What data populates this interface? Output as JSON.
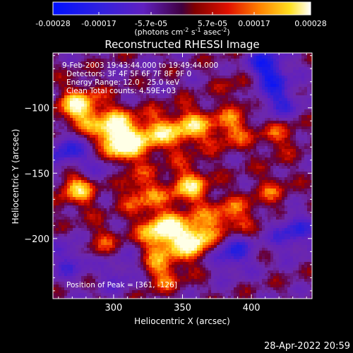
{
  "colorbar": {
    "ticks": [
      "-0.00028",
      "-0.00017",
      "-5.7e-05",
      "5.7e-05",
      "0.00017",
      "0.00028"
    ],
    "unit_main": "(photons cm",
    "unit_exp1": "-2",
    "unit_mid": " s",
    "unit_exp2": "-1",
    "unit_end": " asec",
    "unit_exp3": "-2",
    "unit_close": ")",
    "min": -0.00028,
    "max": 0.00028,
    "colormap": "rainbow-to-hot (blue, purple, red, orange, yellow, white)"
  },
  "annotations": {
    "time_range": "9-Feb-2003 19:43:44.000 to 19:49:44.000",
    "detectors": "Detectors: 3F 4F 5F 6F 7F 8F 9F 0",
    "energy": "Energy Range: 12.0 - 25.0 keV",
    "clean": "Clean     Total counts: 4.59E+03",
    "peak": "Position of Peak = [361, -126]"
  },
  "footer": {
    "timestamp": "28-Apr-2022 20:59"
  },
  "chart_data": {
    "type": "heatmap",
    "title": "Reconstructed RHESSI Image",
    "xlabel": "Heliocentric X (arcsec)",
    "ylabel": "Heliocentric Y (arcsec)",
    "xlim": [
      256,
      444
    ],
    "ylim": [
      -246,
      -58
    ],
    "xticks": [
      300,
      350,
      400
    ],
    "yticks": [
      -100,
      -150,
      -200
    ],
    "xtick_labels": [
      "300",
      "350",
      "400"
    ],
    "ytick_labels": [
      "−100",
      "−150",
      "−200"
    ],
    "value_range": [
      -0.00028,
      0.00028
    ],
    "bright_regions": [
      {
        "x": 275,
        "y": -100,
        "level": 0.85
      },
      {
        "x": 300,
        "y": -115,
        "level": 0.7
      },
      {
        "x": 305,
        "y": -130,
        "level": 0.9
      },
      {
        "x": 275,
        "y": -160,
        "level": 0.75
      },
      {
        "x": 330,
        "y": -120,
        "level": 0.65
      },
      {
        "x": 355,
        "y": -115,
        "level": 0.7
      },
      {
        "x": 385,
        "y": -115,
        "level": 0.55
      },
      {
        "x": 355,
        "y": -160,
        "level": 0.7
      },
      {
        "x": 320,
        "y": -165,
        "level": 0.55
      },
      {
        "x": 335,
        "y": -195,
        "level": 0.95
      },
      {
        "x": 360,
        "y": -200,
        "level": 0.95
      },
      {
        "x": 385,
        "y": -185,
        "level": 0.6
      },
      {
        "x": 335,
        "y": -225,
        "level": 0.55
      },
      {
        "x": 290,
        "y": -205,
        "level": 0.4
      },
      {
        "x": 395,
        "y": -80,
        "level": 0.35
      },
      {
        "x": 420,
        "y": -120,
        "level": 0.4
      },
      {
        "x": 415,
        "y": -165,
        "level": 0.35
      }
    ],
    "dark_regions": [
      {
        "x": 410,
        "y": -70,
        "level": -0.9
      },
      {
        "x": 265,
        "y": -135,
        "level": -0.6
      },
      {
        "x": 290,
        "y": -145,
        "level": -0.5
      },
      {
        "x": 385,
        "y": -210,
        "level": -0.7
      },
      {
        "x": 430,
        "y": -195,
        "level": -0.6
      },
      {
        "x": 420,
        "y": -95,
        "level": -0.6
      },
      {
        "x": 305,
        "y": -225,
        "level": -0.4
      },
      {
        "x": 270,
        "y": -215,
        "level": -0.5
      }
    ]
  }
}
